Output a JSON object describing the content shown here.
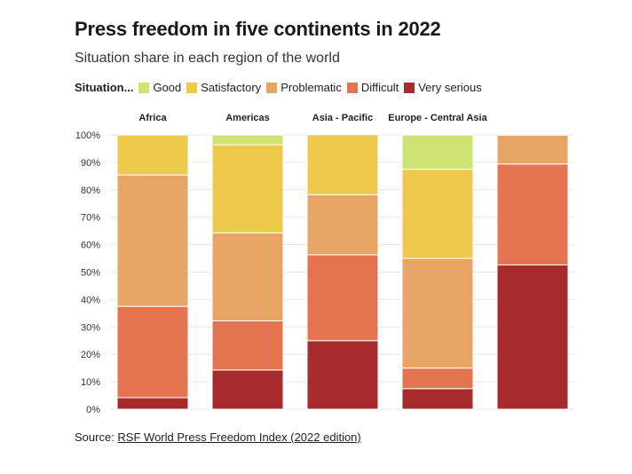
{
  "title": "Press freedom in five continents in 2022",
  "subtitle": "Situation share in each region of the world",
  "legend": {
    "title": "Situation...",
    "items": [
      {
        "label": "Good",
        "color": "#cde373"
      },
      {
        "label": "Satisfactory",
        "color": "#efc94c"
      },
      {
        "label": "Problematic",
        "color": "#e6a465"
      },
      {
        "label": "Difficult",
        "color": "#e4744f"
      },
      {
        "label": "Very serious",
        "color": "#a72a2d"
      }
    ]
  },
  "source": {
    "prefix": "Source: ",
    "link_text": "RSF World Press Freedom Index (2022 edition)"
  },
  "chart_data": {
    "type": "bar",
    "stacked": true,
    "categories": [
      "Africa",
      "Americas",
      "Asia - Pacific",
      "Europe - Central Asia",
      ""
    ],
    "series": [
      {
        "name": "Very serious",
        "color": "#a72a2d",
        "values": [
          4.2,
          14.3,
          25.0,
          7.5,
          52.6
        ]
      },
      {
        "name": "Difficult",
        "color": "#e4744f",
        "values": [
          33.3,
          17.9,
          31.3,
          7.5,
          36.8
        ]
      },
      {
        "name": "Problematic",
        "color": "#e6a465",
        "values": [
          47.9,
          32.1,
          21.9,
          40.0,
          10.5
        ]
      },
      {
        "name": "Satisfactory",
        "color": "#efc94c",
        "values": [
          14.6,
          32.1,
          21.9,
          32.5,
          0
        ]
      },
      {
        "name": "Good",
        "color": "#cde373",
        "values": [
          0,
          3.6,
          0,
          12.5,
          0
        ]
      }
    ],
    "ylim": [
      0,
      100
    ],
    "yticks": [
      "0%",
      "10%",
      "20%",
      "30%",
      "40%",
      "50%",
      "60%",
      "70%",
      "80%",
      "90%",
      "100%"
    ],
    "grid": true
  }
}
